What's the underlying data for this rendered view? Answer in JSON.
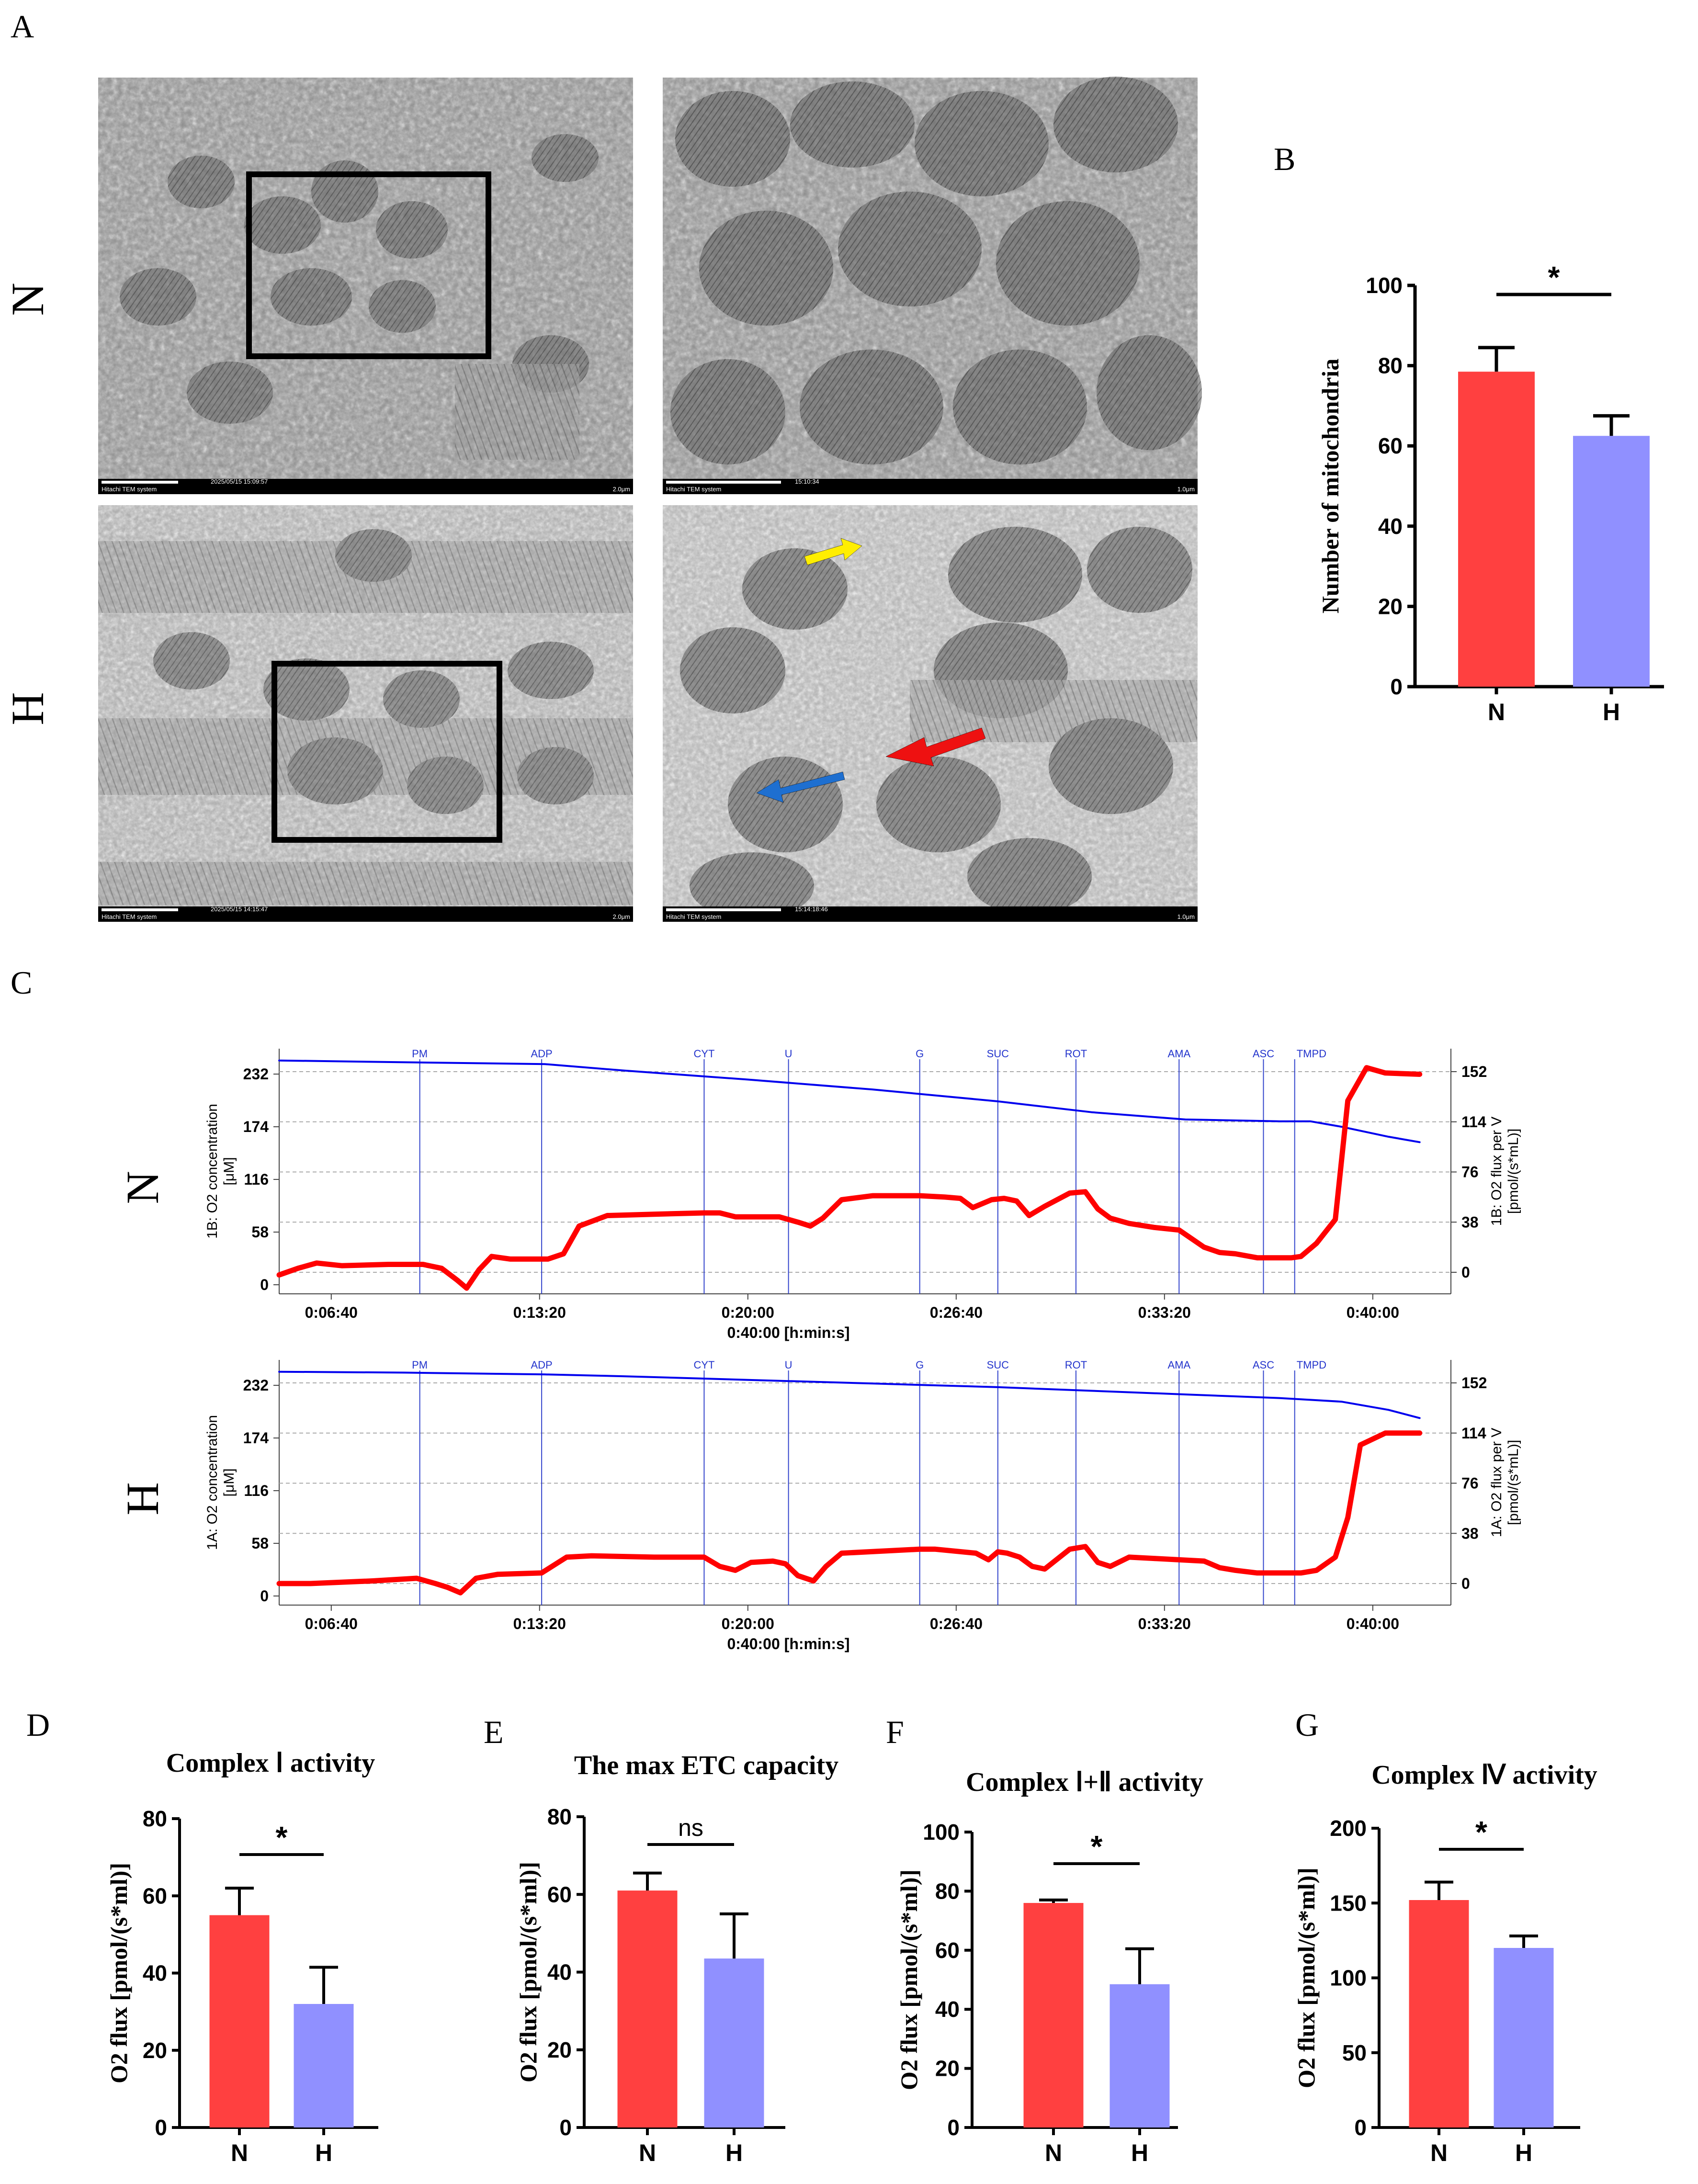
{
  "figure": {
    "panel_labels": {
      "A": "A",
      "B": "B",
      "C": "C",
      "D": "D",
      "E": "E",
      "F": "F",
      "G": "G"
    },
    "row_labels": {
      "N": "N",
      "H": "H"
    },
    "tem": {
      "system_label": "Hitachi TEM system",
      "images": [
        {
          "id": "N-overview",
          "timestamp": "2025/05/15 15:09:57",
          "scale": "2.0μm"
        },
        {
          "id": "N-zoom",
          "timestamp": "15:10:34",
          "scale": "1.0μm"
        },
        {
          "id": "H-overview",
          "timestamp": "2025/05/15 14:15:47",
          "scale": "2.0μm"
        },
        {
          "id": "H-zoom",
          "timestamp": "15:14:18:46",
          "scale": "1.0μm"
        }
      ],
      "arrows": [
        {
          "color": "#ffee00",
          "name": "yellow-arrow"
        },
        {
          "color": "#ee1111",
          "name": "red-arrow"
        },
        {
          "color": "#1e6fd0",
          "name": "blue-arrow"
        }
      ]
    },
    "colors": {
      "N": "#ff4040",
      "H": "#9090ff",
      "trace_red": "#ff0000",
      "trace_blue": "#0000ee"
    }
  },
  "chart_data": [
    {
      "id": "B",
      "type": "bar",
      "title": "",
      "ylabel": "Number of mitochondria",
      "xlabel": "",
      "categories": [
        "N",
        "H"
      ],
      "values": [
        78.5,
        62.5
      ],
      "errors": [
        6,
        5
      ],
      "ylim": [
        0,
        100
      ],
      "yticks": [
        0,
        20,
        40,
        60,
        80,
        100
      ],
      "significance": "*"
    },
    {
      "id": "C-N",
      "type": "line",
      "title": "",
      "ylabel_left": "1B: O2 concentration\n[μM]",
      "ylabel_right": "1B: O2 flux per V\n[pmol/(s*mL)]",
      "xlabel": "0:40:00 [h:min:s]",
      "x_ticks": [
        "0:06:40",
        "0:13:20",
        "0:20:00",
        "0:26:40",
        "0:33:20",
        "0:40:00"
      ],
      "x_tick_minutes": [
        6.667,
        13.333,
        20,
        26.667,
        33.333,
        40
      ],
      "xlim_minutes": [
        5,
        42.5
      ],
      "left_ticks": [
        0,
        58,
        116,
        174,
        232
      ],
      "right_ticks": [
        0,
        38,
        76,
        114,
        152
      ],
      "left_range": [
        -10,
        260
      ],
      "events": [
        "PM",
        "ADP",
        "CYT",
        "U",
        "G",
        "SUC",
        "ROT",
        "AMA",
        "ASC",
        "TMPD"
      ],
      "event_minutes": [
        9.5,
        13.4,
        18.6,
        21.3,
        25.5,
        28.0,
        30.5,
        33.8,
        36.5,
        37.5
      ],
      "series": [
        {
          "name": "O2 concentration",
          "axis": "left",
          "color": "#0000ee",
          "x": [
            5,
            9,
            13.5,
            16,
            20,
            24,
            28,
            31,
            34,
            37,
            38,
            39,
            40.5,
            41.5
          ],
          "y": [
            247,
            245,
            243,
            236,
            226,
            215,
            202,
            190,
            182,
            180,
            180,
            174,
            163,
            157
          ]
        },
        {
          "name": "O2 flux per V",
          "axis": "right",
          "color": "#ff0000",
          "x": [
            5,
            5.6,
            6.2,
            7,
            8.5,
            9.6,
            10.2,
            10.7,
            11,
            11.4,
            11.8,
            12.4,
            13,
            13.6,
            14.1,
            14.6,
            15.5,
            17,
            18.6,
            19.1,
            19.6,
            20.3,
            21,
            21.6,
            22,
            22.4,
            23,
            24,
            25.5,
            26.3,
            26.8,
            27.2,
            27.8,
            28.2,
            28.6,
            29,
            29.5,
            30.3,
            30.8,
            31.2,
            31.6,
            32.2,
            33,
            33.8,
            34.6,
            35.1,
            35.6,
            36.3,
            37.4,
            37.7,
            38.2,
            38.8,
            39.2,
            39.8,
            40.4,
            41.5
          ],
          "y": [
            -2,
            3,
            7,
            5,
            6,
            6,
            3,
            -6,
            -12,
            2,
            12,
            10,
            10,
            10,
            14,
            35,
            43,
            44,
            45,
            45,
            42,
            42,
            42,
            38,
            35,
            41,
            55,
            58,
            58,
            57,
            56,
            49,
            55,
            56,
            54,
            43,
            50,
            60,
            61,
            48,
            41,
            37,
            34,
            32,
            19,
            15,
            14,
            11,
            11,
            12,
            22,
            40,
            130,
            155,
            151,
            150
          ]
        }
      ]
    },
    {
      "id": "C-H",
      "type": "line",
      "title": "",
      "ylabel_left": "1A: O2 concentration\n[μM]",
      "ylabel_right": "1A: O2 flux per V\n[pmol/(s*mL)]",
      "xlabel": "0:40:00 [h:min:s]",
      "x_ticks": [
        "0:06:40",
        "0:13:20",
        "0:20:00",
        "0:26:40",
        "0:33:20",
        "0:40:00"
      ],
      "x_tick_minutes": [
        6.667,
        13.333,
        20,
        26.667,
        33.333,
        40
      ],
      "xlim_minutes": [
        5,
        42.5
      ],
      "left_ticks": [
        0,
        58,
        116,
        174,
        232
      ],
      "right_ticks": [
        0,
        38,
        76,
        114,
        152
      ],
      "left_range": [
        -10,
        260
      ],
      "events": [
        "PM",
        "ADP",
        "CYT",
        "U",
        "G",
        "SUC",
        "ROT",
        "AMA",
        "ASC",
        "TMPD"
      ],
      "event_minutes": [
        9.5,
        13.4,
        18.6,
        21.3,
        25.5,
        28.0,
        30.5,
        33.8,
        36.5,
        37.5
      ],
      "series": [
        {
          "name": "O2 concentration",
          "axis": "left",
          "color": "#0000ee",
          "x": [
            5,
            9,
            13.5,
            16,
            20,
            24,
            28,
            31,
            34,
            37,
            38,
            39,
            40.5,
            41.5
          ],
          "y": [
            247,
            246,
            244,
            242,
            238,
            234,
            230,
            226,
            222,
            218,
            216,
            214,
            205,
            196
          ]
        },
        {
          "name": "O2 flux per V",
          "axis": "right",
          "color": "#ff0000",
          "x": [
            5,
            6,
            8,
            9.4,
            10,
            10.4,
            10.8,
            11.3,
            12,
            13.4,
            14.2,
            15,
            17,
            18.6,
            19.1,
            19.6,
            20.1,
            20.8,
            21.2,
            21.6,
            22.1,
            22.5,
            23,
            25.5,
            26,
            27.3,
            27.7,
            28,
            28.3,
            28.7,
            29.1,
            29.5,
            30.3,
            30.8,
            31.2,
            31.6,
            32.2,
            33,
            33.8,
            34.6,
            35.1,
            35.6,
            36.3,
            37.4,
            37.7,
            38.2,
            38.8,
            39.2,
            39.6,
            40.4,
            41.5
          ],
          "y": [
            0,
            0,
            2,
            4,
            0,
            -3,
            -7,
            4,
            7,
            8,
            20,
            21,
            20,
            20,
            13,
            10,
            16,
            17,
            15,
            6,
            2,
            13,
            23,
            26,
            26,
            23,
            18,
            24,
            23,
            20,
            13,
            11,
            26,
            28,
            16,
            13,
            20,
            19,
            18,
            17,
            12,
            10,
            8,
            8,
            8,
            10,
            20,
            50,
            105,
            114,
            114
          ]
        }
      ]
    },
    {
      "id": "D",
      "type": "bar",
      "title": "Complex Ⅰ activity",
      "ylabel": "O2 flux [pmol/(s*ml)]",
      "xlabel": "",
      "categories": [
        "N",
        "H"
      ],
      "values": [
        55,
        32
      ],
      "errors": [
        7,
        9.5
      ],
      "ylim": [
        0,
        80
      ],
      "yticks": [
        0,
        20,
        40,
        60,
        80
      ],
      "significance": "*"
    },
    {
      "id": "E",
      "type": "bar",
      "title": "The max ETC capacity",
      "ylabel": "O2 flux [pmol/(s*ml)]",
      "xlabel": "",
      "categories": [
        "N",
        "H"
      ],
      "values": [
        61,
        43.5
      ],
      "errors": [
        4.5,
        11.5
      ],
      "ylim": [
        0,
        80
      ],
      "yticks": [
        0,
        20,
        40,
        60,
        80
      ],
      "significance": "ns"
    },
    {
      "id": "F",
      "type": "bar",
      "title": "Complex Ⅰ+Ⅱ activity",
      "ylabel": "O2 flux [pmol/(s*ml)]",
      "xlabel": "",
      "categories": [
        "N",
        "H"
      ],
      "values": [
        76,
        48.5
      ],
      "errors": [
        1,
        12
      ],
      "ylim": [
        0,
        100
      ],
      "yticks": [
        0,
        20,
        40,
        60,
        80,
        100
      ],
      "significance": "*"
    },
    {
      "id": "G",
      "type": "bar",
      "title": "Complex Ⅳ  activity",
      "ylabel": "O2 flux [pmol/(s*ml)]",
      "xlabel": "",
      "categories": [
        "N",
        "H"
      ],
      "values": [
        152,
        120
      ],
      "errors": [
        12,
        8
      ],
      "ylim": [
        0,
        200
      ],
      "yticks": [
        0,
        50,
        100,
        150,
        200
      ],
      "significance": "*"
    }
  ]
}
